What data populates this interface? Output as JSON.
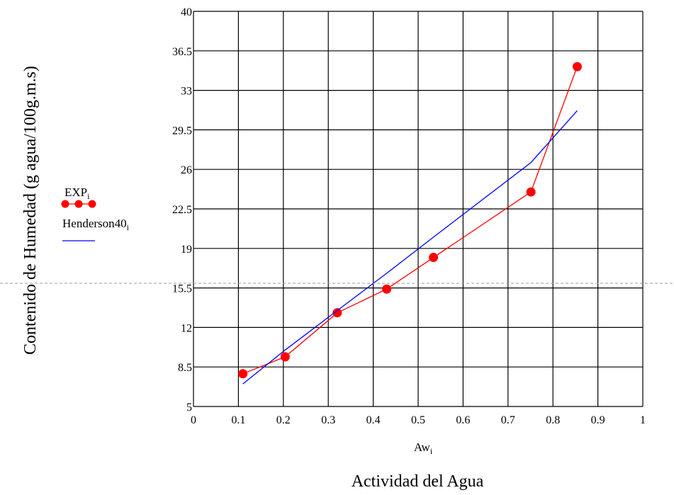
{
  "chart_data": {
    "type": "line",
    "xlabel": "Aw",
    "xlabel_sub": "i",
    "xlabel2": "Actividad del Agua",
    "ylabel": "Contenido de Humedad (g agua/100g.m.s)",
    "xlim": [
      0,
      1
    ],
    "ylim": [
      5,
      40
    ],
    "x_ticks": [
      0,
      0.1,
      0.2,
      0.3,
      0.4,
      0.5,
      0.6,
      0.7,
      0.8,
      0.9,
      1
    ],
    "x_tick_labels": [
      "0",
      "0.1",
      "0.2",
      "0.3",
      "0.4",
      "0.5",
      "0.6",
      "0.7",
      "0.8",
      "0.9",
      "1"
    ],
    "y_ticks": [
      5,
      8.5,
      12,
      15.5,
      19,
      22.5,
      26,
      29.5,
      33,
      36.5,
      40
    ],
    "y_tick_labels": [
      "5",
      "8.5",
      "12",
      "15.5",
      "19",
      "22.5",
      "26",
      "29.5",
      "33",
      "36.5",
      "40"
    ],
    "grid": true,
    "legend_position": "left",
    "series": [
      {
        "name": "EXP",
        "name_sub": "i",
        "color": "#ff0000",
        "marker": "circle",
        "x": [
          0.11,
          0.204,
          0.32,
          0.43,
          0.534,
          0.751,
          0.854
        ],
        "y": [
          7.9,
          9.4,
          13.3,
          15.4,
          18.2,
          24.0,
          35.1
        ]
      },
      {
        "name": "Henderson40",
        "name_sub": "i",
        "color": "#0000ff",
        "marker": "none",
        "x": [
          0.11,
          0.204,
          0.32,
          0.43,
          0.534,
          0.751,
          0.854
        ],
        "y": [
          7.0,
          10.0,
          13.5,
          16.8,
          20.0,
          26.6,
          31.2
        ]
      }
    ]
  }
}
